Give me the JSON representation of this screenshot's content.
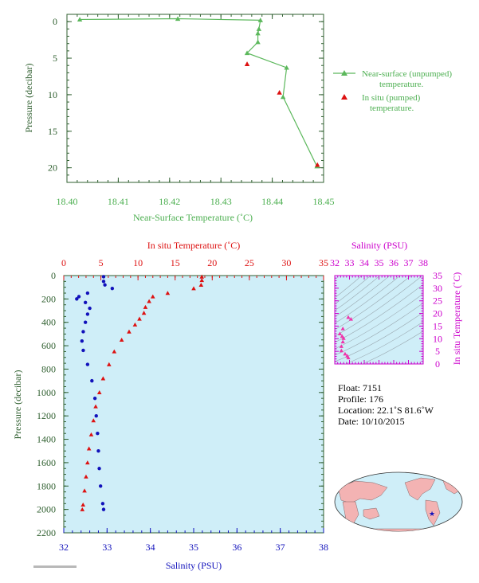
{
  "chart_data": [
    {
      "type": "line",
      "xlabel": "Near-Surface Temperature (˚C)",
      "ylabel": "Pressure (decibar)",
      "xlim": [
        18.4,
        18.45
      ],
      "ylim": [
        22,
        -1
      ],
      "xticks": [
        "18.40",
        "18.41",
        "18.42",
        "18.43",
        "18.44",
        "18.45"
      ],
      "yticks": [
        "0",
        "5",
        "10",
        "15",
        "20"
      ],
      "legend_position": "right",
      "series": [
        {
          "name": "Near-surface (unpumped) temperature.",
          "color": "#5cb85c",
          "marker": "triangle",
          "points": [
            [
              18.4025,
              -0.3
            ],
            [
              18.4216,
              -0.4
            ],
            [
              18.4377,
              -0.2
            ],
            [
              18.4374,
              1.0
            ],
            [
              18.4372,
              1.6
            ],
            [
              18.4372,
              2.8
            ],
            [
              18.4351,
              4.3
            ],
            [
              18.4428,
              6.3
            ],
            [
              18.4421,
              10.3
            ],
            [
              18.4487,
              19.8
            ]
          ]
        },
        {
          "name": "In situ (pumped) temperature.",
          "color": "#dd1111",
          "marker": "triangle",
          "points": [
            [
              18.4351,
              5.8
            ],
            [
              18.4414,
              9.7
            ],
            [
              18.4488,
              19.6
            ]
          ]
        }
      ]
    },
    {
      "type": "scatter",
      "ylabel": "Pressure (decibar)",
      "ylim": [
        2200,
        0
      ],
      "yticks": [
        "0",
        "200",
        "400",
        "600",
        "800",
        "1000",
        "1200",
        "1400",
        "1600",
        "1800",
        "2000",
        "2200"
      ],
      "x_top": {
        "label": "In situ Temperature (˚C)",
        "range": [
          0,
          35
        ],
        "ticks": [
          "0",
          "5",
          "10",
          "15",
          "20",
          "25",
          "30",
          "35"
        ],
        "color": "#dd1111"
      },
      "x_bottom": {
        "label": "Salinity (PSU)",
        "range": [
          32,
          38
        ],
        "ticks": [
          "32",
          "33",
          "34",
          "35",
          "36",
          "37",
          "38"
        ],
        "color": "#1111bb"
      },
      "series": [
        {
          "name": "Temperature",
          "axis": "top",
          "color": "#dd1111",
          "points": [
            [
              18.6,
              10
            ],
            [
              18.6,
              40
            ],
            [
              18.5,
              80
            ],
            [
              17.5,
              110
            ],
            [
              14,
              150
            ],
            [
              12,
              180
            ],
            [
              11.5,
              220
            ],
            [
              11,
              270
            ],
            [
              10.8,
              320
            ],
            [
              10.2,
              370
            ],
            [
              9.6,
              420
            ],
            [
              8.8,
              480
            ],
            [
              7.8,
              550
            ],
            [
              6.8,
              650
            ],
            [
              6.1,
              760
            ],
            [
              5.3,
              880
            ],
            [
              4.8,
              1000
            ],
            [
              4.3,
              1120
            ],
            [
              4.0,
              1240
            ],
            [
              3.7,
              1360
            ],
            [
              3.4,
              1480
            ],
            [
              3.2,
              1600
            ],
            [
              3.0,
              1720
            ],
            [
              2.8,
              1840
            ],
            [
              2.6,
              1960
            ],
            [
              2.5,
              2000
            ]
          ]
        },
        {
          "name": "Salinity",
          "axis": "bottom",
          "color": "#1111bb",
          "points": [
            [
              32.92,
              10
            ],
            [
              32.92,
              50
            ],
            [
              32.95,
              80
            ],
            [
              33.12,
              110
            ],
            [
              32.55,
              150
            ],
            [
              32.35,
              180
            ],
            [
              32.3,
              200
            ],
            [
              32.5,
              230
            ],
            [
              32.6,
              280
            ],
            [
              32.55,
              330
            ],
            [
              32.5,
              400
            ],
            [
              32.45,
              480
            ],
            [
              32.42,
              560
            ],
            [
              32.45,
              640
            ],
            [
              32.55,
              760
            ],
            [
              32.65,
              900
            ],
            [
              32.72,
              1050
            ],
            [
              32.75,
              1200
            ],
            [
              32.78,
              1350
            ],
            [
              32.8,
              1500
            ],
            [
              32.82,
              1650
            ],
            [
              32.85,
              1800
            ],
            [
              32.9,
              1950
            ],
            [
              32.92,
              2000
            ]
          ]
        }
      ]
    },
    {
      "type": "scatter",
      "xlabel": "Salinity (PSU)",
      "ylabel": "In situ Temperature (˚C)",
      "xlim": [
        32,
        38
      ],
      "ylim": [
        0,
        35
      ],
      "xticks": [
        "32",
        "33",
        "34",
        "35",
        "36",
        "37",
        "38"
      ],
      "yticks": [
        "0",
        "5",
        "10",
        "15",
        "20",
        "25",
        "30",
        "35"
      ],
      "color": "#ee33aa",
      "points": [
        [
          32.92,
          18.5
        ],
        [
          33.1,
          17.8
        ],
        [
          32.55,
          14
        ],
        [
          32.35,
          12
        ],
        [
          32.5,
          11
        ],
        [
          32.6,
          10.2
        ],
        [
          32.55,
          8.8
        ],
        [
          32.45,
          7.0
        ],
        [
          32.45,
          5.3
        ],
        [
          32.7,
          4.0
        ],
        [
          32.85,
          3.2
        ],
        [
          32.92,
          2.5
        ]
      ]
    }
  ],
  "float_info": {
    "float": "Float:  7151",
    "profile": "Profile:  176",
    "location": "Location:  22.1˚S  81.6˚W",
    "date": "Date:  10/10/2015"
  }
}
